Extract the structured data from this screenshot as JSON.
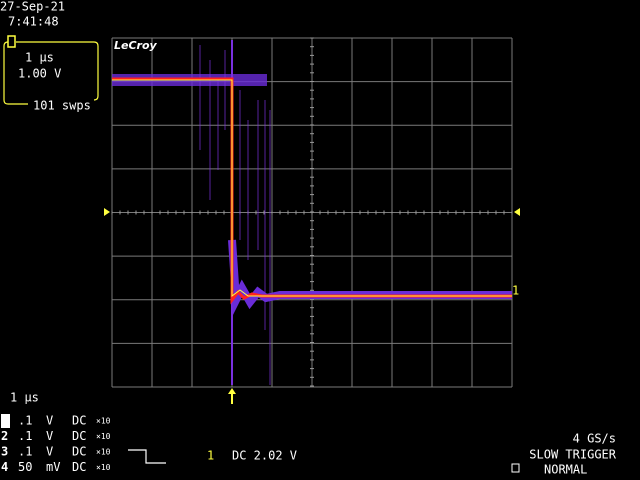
{
  "header": {
    "date": "27-Sep-21",
    "time": "7:41:48"
  },
  "timebase_box": {
    "time_per_div": "1 µs",
    "volts_per_div": "1.00 V",
    "sweeps": "101 swps"
  },
  "logo": "LeCroy",
  "trace_marker": "1",
  "timebase": "1 µs",
  "channels": [
    {
      "id": "1",
      "scale": ".1",
      "unit": "V",
      "coupling": "DC",
      "probe": "×10"
    },
    {
      "id": "2",
      "scale": ".1",
      "unit": "V",
      "coupling": "DC",
      "probe": "×10"
    },
    {
      "id": "3",
      "scale": ".1",
      "unit": "V",
      "coupling": "DC",
      "probe": "×10"
    },
    {
      "id": "4",
      "scale": "50",
      "unit": "mV",
      "coupling": "DC",
      "probe": "×10"
    }
  ],
  "trigger": {
    "channel": "1",
    "coupling_level": "DC 2.02 V",
    "sample_rate": "4 GS/s",
    "mode": "SLOW TRIGGER",
    "state": "NORMAL"
  }
}
